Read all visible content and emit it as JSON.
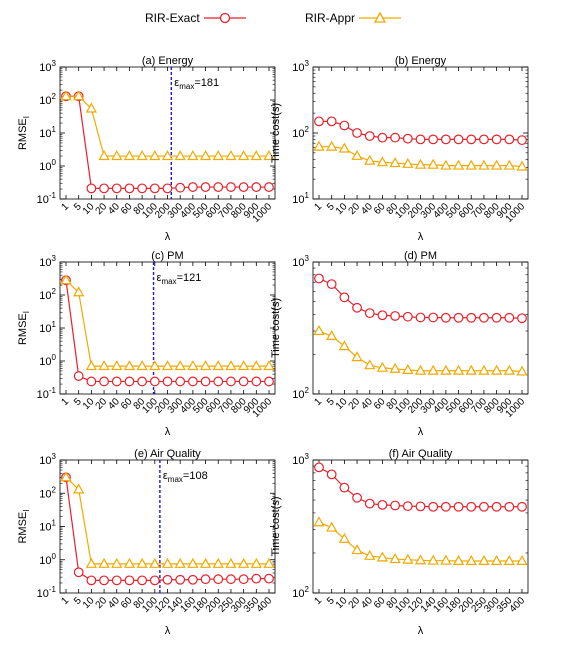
{
  "legend": {
    "items": [
      {
        "label": "RIR-Exact",
        "color": "#e8202a",
        "marker": "circle"
      },
      {
        "label": "RIR-Appr",
        "color": "#f2a900",
        "marker": "triangle"
      }
    ]
  },
  "chart_data": [
    {
      "type": "line",
      "title": "(a) Energy",
      "xlabel": "λ",
      "ylabel": "RMSE_I",
      "yscale": "log",
      "yticks": [
        "10^-1",
        "10^0",
        "10^1",
        "10^2",
        "10^3"
      ],
      "categories": [
        "1",
        "5",
        "10",
        "20",
        "40",
        "60",
        "80",
        "100",
        "200",
        "300",
        "400",
        "500",
        "600",
        "700",
        "800",
        "900",
        "1000"
      ],
      "series": [
        {
          "name": "RIR-Exact",
          "values": [
            130,
            130,
            0.21,
            0.21,
            0.21,
            0.21,
            0.21,
            0.21,
            0.21,
            0.22,
            0.23,
            0.23,
            0.23,
            0.23,
            0.23,
            0.23,
            0.23
          ]
        },
        {
          "name": "RIR-Appr",
          "values": [
            130,
            130,
            55,
            2,
            2,
            2,
            2,
            2,
            2,
            2,
            2,
            2,
            2,
            2,
            2,
            2,
            2
          ]
        }
      ],
      "vline": {
        "index": 8.3,
        "label_prefix": "ε",
        "label_sub": "max",
        "label_value": "=181"
      }
    },
    {
      "type": "line",
      "title": "(b) Energy",
      "xlabel": "λ",
      "ylabel": "Time cost(s)",
      "yscale": "log",
      "yticks": [
        "10^1",
        "10^2",
        "10^3"
      ],
      "categories": [
        "1",
        "5",
        "10",
        "20",
        "40",
        "60",
        "80",
        "100",
        "200",
        "300",
        "400",
        "500",
        "600",
        "700",
        "800",
        "900",
        "1000"
      ],
      "series": [
        {
          "name": "RIR-Exact",
          "values": [
            150,
            150,
            130,
            100,
            90,
            85,
            85,
            82,
            80,
            80,
            80,
            80,
            80,
            80,
            80,
            80,
            78
          ]
        },
        {
          "name": "RIR-Appr",
          "values": [
            62,
            62,
            58,
            45,
            38,
            36,
            35,
            34,
            33,
            33,
            32,
            32,
            32,
            32,
            32,
            32,
            31
          ]
        }
      ]
    },
    {
      "type": "line",
      "title": "(c) PM",
      "xlabel": "λ",
      "ylabel": "RMSE_I",
      "yscale": "log",
      "yticks": [
        "10^-1",
        "10^0",
        "10^1",
        "10^2",
        "10^3"
      ],
      "categories": [
        "1",
        "5",
        "10",
        "20",
        "40",
        "60",
        "80",
        "100",
        "200",
        "300",
        "400",
        "500",
        "600",
        "700",
        "800",
        "900",
        "1000"
      ],
      "series": [
        {
          "name": "RIR-Exact",
          "values": [
            280,
            0.35,
            0.24,
            0.24,
            0.24,
            0.24,
            0.24,
            0.24,
            0.24,
            0.24,
            0.24,
            0.24,
            0.24,
            0.24,
            0.24,
            0.24,
            0.24
          ]
        },
        {
          "name": "RIR-Appr",
          "values": [
            280,
            120,
            0.7,
            0.7,
            0.7,
            0.7,
            0.7,
            0.7,
            0.7,
            0.7,
            0.7,
            0.7,
            0.7,
            0.7,
            0.7,
            0.7,
            0.7
          ]
        }
      ],
      "vline": {
        "index": 6.9,
        "label_prefix": "ε",
        "label_sub": "max",
        "label_value": "=121"
      }
    },
    {
      "type": "line",
      "title": "(d) PM",
      "xlabel": "λ",
      "ylabel": "Time cost(s)",
      "yscale": "log",
      "yticks": [
        "10^2",
        "10^3"
      ],
      "categories": [
        "1",
        "5",
        "10",
        "20",
        "40",
        "60",
        "80",
        "100",
        "200",
        "300",
        "400",
        "500",
        "600",
        "700",
        "800",
        "900",
        "1000"
      ],
      "series": [
        {
          "name": "RIR-Exact",
          "values": [
            750,
            680,
            540,
            450,
            410,
            395,
            390,
            385,
            380,
            380,
            378,
            378,
            378,
            378,
            378,
            378,
            375
          ]
        },
        {
          "name": "RIR-Appr",
          "values": [
            300,
            275,
            230,
            190,
            165,
            158,
            155,
            152,
            150,
            150,
            150,
            150,
            150,
            150,
            150,
            150,
            148
          ]
        }
      ]
    },
    {
      "type": "line",
      "title": "(e) Air Quality",
      "xlabel": "λ",
      "ylabel": "RMSE_I",
      "yscale": "log",
      "yticks": [
        "10^-1",
        "10^0",
        "10^1",
        "10^2",
        "10^3"
      ],
      "categories": [
        "1",
        "5",
        "10",
        "20",
        "40",
        "60",
        "80",
        "100",
        "120",
        "140",
        "160",
        "180",
        "200",
        "250",
        "300",
        "350",
        "400"
      ],
      "series": [
        {
          "name": "RIR-Exact",
          "values": [
            300,
            0.42,
            0.24,
            0.24,
            0.24,
            0.24,
            0.24,
            0.24,
            0.25,
            0.25,
            0.25,
            0.26,
            0.26,
            0.26,
            0.26,
            0.27,
            0.27
          ]
        },
        {
          "name": "RIR-Appr",
          "values": [
            300,
            130,
            0.75,
            0.75,
            0.75,
            0.75,
            0.75,
            0.75,
            0.75,
            0.75,
            0.75,
            0.75,
            0.75,
            0.75,
            0.75,
            0.75,
            0.75
          ]
        }
      ],
      "vline": {
        "index": 7.4,
        "label_prefix": "ε",
        "label_sub": "max",
        "label_value": "=108"
      }
    },
    {
      "type": "line",
      "title": "(f) Air Quality",
      "xlabel": "λ",
      "ylabel": "Time cost(s)",
      "yscale": "log",
      "yticks": [
        "10^2",
        "10^3"
      ],
      "categories": [
        "1",
        "5",
        "10",
        "20",
        "40",
        "60",
        "80",
        "100",
        "120",
        "140",
        "160",
        "180",
        "200",
        "250",
        "300",
        "350",
        "400"
      ],
      "series": [
        {
          "name": "RIR-Exact",
          "values": [
            880,
            780,
            620,
            520,
            470,
            460,
            455,
            450,
            448,
            445,
            445,
            445,
            445,
            445,
            445,
            445,
            445
          ]
        },
        {
          "name": "RIR-Appr",
          "values": [
            340,
            310,
            255,
            210,
            190,
            185,
            180,
            178,
            176,
            175,
            175,
            174,
            174,
            174,
            174,
            174,
            174
          ]
        }
      ]
    }
  ]
}
